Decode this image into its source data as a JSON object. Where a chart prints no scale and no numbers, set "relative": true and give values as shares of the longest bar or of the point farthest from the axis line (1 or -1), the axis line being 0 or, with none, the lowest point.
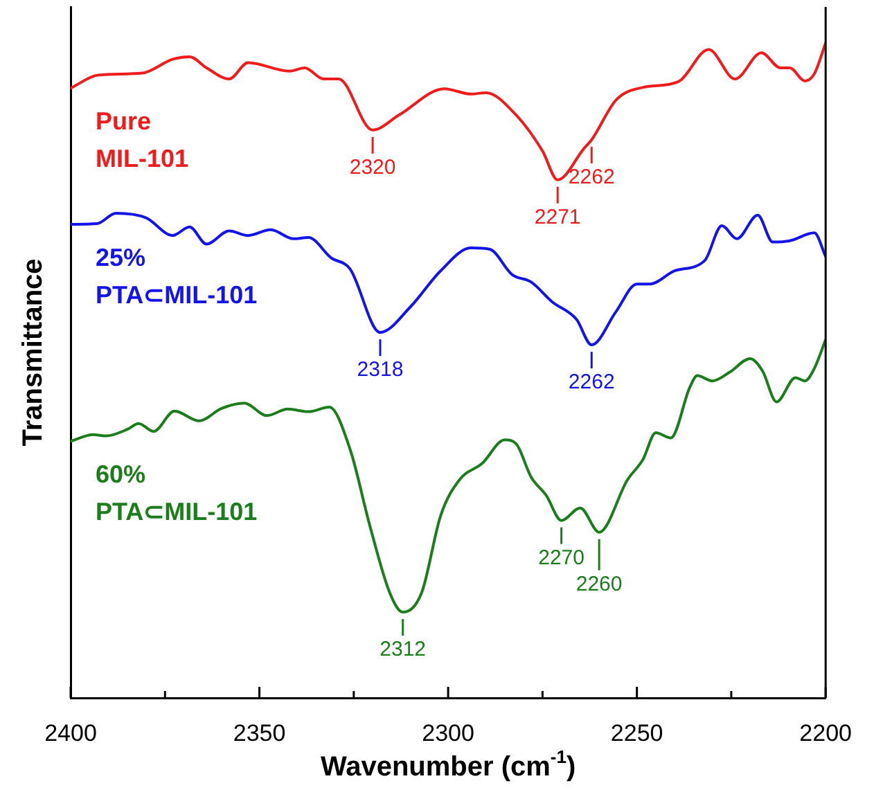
{
  "chart_data": {
    "type": "line",
    "relative": true,
    "xlabel": "Wavenumber (cm$^{-1}$)",
    "ylabel": "Transmittance",
    "xlim": [
      2400,
      2200
    ],
    "xticks": [
      2400,
      {
        "value": 2375,
        "label": null
      },
      2350,
      {
        "value": 2325,
        "label": null
      },
      2300,
      {
        "value": 2275,
        "label": null
      },
      2250,
      {
        "value": 2225,
        "label": null
      },
      2200
    ],
    "legend": false,
    "grid": false,
    "marker": "none",
    "line_style": "solid",
    "series": [
      {
        "name": "Pure MIL-101",
        "color": "#ee1c1c",
        "x": [
          2400,
          2392.6,
          2381,
          2373,
          2368.5,
          2364,
          2358,
          2353,
          2342,
          2338,
          2333,
          2329,
          2320,
          2313,
          2301,
          2294,
          2290,
          2282,
          2275,
          2271,
          2264,
          2262,
          2255.5,
          2248.5,
          2239,
          2231,
          2224,
          2217,
          2212,
          2209.5,
          2205.5,
          2203,
          2200
        ],
        "values": [
          0.931,
          0.951,
          0.954,
          0.975,
          0.979,
          0.962,
          0.945,
          0.97,
          0.957,
          0.962,
          0.945,
          0.945,
          0.867,
          0.89,
          0.93,
          0.922,
          0.924,
          0.89,
          0.835,
          0.791,
          0.839,
          0.852,
          0.913,
          0.932,
          0.941,
          0.99,
          0.945,
          0.985,
          0.962,
          0.962,
          0.942,
          0.953,
          1.0
        ]
      },
      {
        "name": "25% PTA⊂MIL-101",
        "color": "#1414e6",
        "x": [
          2400,
          2393,
          2388,
          2380,
          2373,
          2368.5,
          2364,
          2358,
          2353,
          2347,
          2341,
          2337,
          2331,
          2326,
          2318,
          2310,
          2302,
          2294,
          2289,
          2283,
          2278,
          2272.5,
          2266,
          2262,
          2255.5,
          2250,
          2246.5,
          2240,
          2232,
          2227.5,
          2223.5,
          2218,
          2214,
          2209.5,
          2203,
          2200
        ],
        "values": [
          0.723,
          0.724,
          0.74,
          0.733,
          0.706,
          0.719,
          0.693,
          0.713,
          0.706,
          0.715,
          0.701,
          0.703,
          0.672,
          0.655,
          0.558,
          0.597,
          0.652,
          0.687,
          0.685,
          0.646,
          0.635,
          0.605,
          0.578,
          0.539,
          0.59,
          0.632,
          0.632,
          0.652,
          0.668,
          0.721,
          0.701,
          0.737,
          0.696,
          0.698,
          0.71,
          0.674
        ]
      },
      {
        "name": "60% PTA⊂MIL-101",
        "color": "#1b7d1b",
        "x": [
          2400,
          2394,
          2390.6,
          2385,
          2382,
          2378,
          2372.5,
          2366,
          2360,
          2354,
          2348,
          2342.5,
          2337,
          2331.5,
          2326,
          2320.7,
          2315.5,
          2312,
          2307,
          2302,
          2297,
          2291,
          2285,
          2282,
          2278,
          2274,
          2270,
          2265,
          2260,
          2252.5,
          2248.4,
          2245,
          2241,
          2236,
          2234,
          2230,
          2225.5,
          2220,
          2216.7,
          2213,
          2208,
          2205.5,
          2203,
          2200
        ],
        "values": [
          0.392,
          0.402,
          0.4,
          0.41,
          0.419,
          0.407,
          0.438,
          0.423,
          0.442,
          0.45,
          0.431,
          0.441,
          0.437,
          0.444,
          0.38,
          0.262,
          0.161,
          0.131,
          0.161,
          0.278,
          0.333,
          0.358,
          0.394,
          0.388,
          0.337,
          0.309,
          0.271,
          0.29,
          0.253,
          0.333,
          0.364,
          0.405,
          0.397,
          0.474,
          0.492,
          0.484,
          0.497,
          0.518,
          0.499,
          0.452,
          0.489,
          0.484,
          0.503,
          0.547
        ]
      }
    ],
    "annotations": [
      {
        "text": "2320",
        "x": 2320,
        "y": 0.867
      },
      {
        "text": "2271",
        "x": 2271,
        "y": 0.791
      },
      {
        "text": "2262",
        "x": 2262,
        "y": 0.852
      },
      {
        "text": "2318",
        "x": 2318,
        "y": 0.558
      },
      {
        "text": "2262",
        "x": 2262,
        "y": 0.539
      },
      {
        "text": "2312",
        "x": 2312,
        "y": 0.131
      },
      {
        "text": "2270",
        "x": 2270,
        "y": 0.271
      },
      {
        "text": "2260",
        "x": 2260,
        "y": 0.253
      }
    ]
  }
}
